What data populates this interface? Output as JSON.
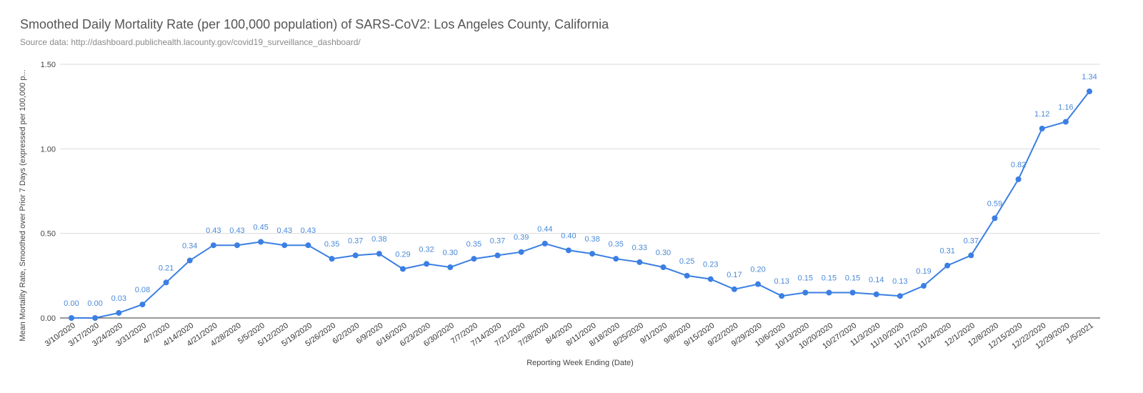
{
  "chart_data": {
    "type": "line",
    "title": "Smoothed Daily Mortality Rate (per 100,000 population) of SARS-CoV2: Los Angeles County, California",
    "subtitle": "Source data:  http://dashboard.publichealth.lacounty.gov/covid19_surveillance_dashboard/",
    "xlabel": "Reporting Week Ending (Date)",
    "ylabel": "Mean Mortality Rate, Smoothed over Prior 7 Days (expressed per 100,000 p...",
    "ylim": [
      0,
      1.5
    ],
    "yticks": [
      0,
      0.5,
      1.0,
      1.5
    ],
    "ytick_labels": [
      "0.00",
      "0.50",
      "1.00",
      "1.50"
    ],
    "grid": true,
    "series_color": "#3b7fe3",
    "categories": [
      "3/10/2020",
      "3/17/2020",
      "3/24/2020",
      "3/31/2020",
      "4/7/2020",
      "4/14/2020",
      "4/21/2020",
      "4/28/2020",
      "5/5/2020",
      "5/12/2020",
      "5/19/2020",
      "5/26/2020",
      "6/2/2020",
      "6/9/2020",
      "6/16/2020",
      "6/23/2020",
      "6/30/2020",
      "7/7/2020",
      "7/14/2020",
      "7/21/2020",
      "7/28/2020",
      "8/4/2020",
      "8/11/2020",
      "8/18/2020",
      "8/25/2020",
      "9/1/2020",
      "9/8/2020",
      "9/15/2020",
      "9/22/2020",
      "9/29/2020",
      "10/6/2020",
      "10/13/2020",
      "10/20/2020",
      "10/27/2020",
      "11/3/2020",
      "11/10/2020",
      "11/17/2020",
      "11/24/2020",
      "12/1/2020",
      "12/8/2020",
      "12/15/2020",
      "12/22/2020",
      "12/29/2020",
      "1/5/2021"
    ],
    "values": [
      0.0,
      0.0,
      0.03,
      0.08,
      0.21,
      0.34,
      0.43,
      0.43,
      0.45,
      0.43,
      0.43,
      0.35,
      0.37,
      0.38,
      0.29,
      0.32,
      0.3,
      0.35,
      0.37,
      0.39,
      0.44,
      0.4,
      0.38,
      0.35,
      0.33,
      0.3,
      0.25,
      0.23,
      0.17,
      0.2,
      0.13,
      0.15,
      0.15,
      0.15,
      0.14,
      0.13,
      0.19,
      0.31,
      0.37,
      0.59,
      0.82,
      1.12,
      1.16,
      1.34
    ],
    "labels": [
      "0.00",
      "0.00",
      "0.03",
      "0.08",
      "0.21",
      "0.34",
      "0.43",
      "0.43",
      "0.45",
      "0.43",
      "0.43",
      "0.35",
      "0.37",
      "0.38",
      "0.29",
      "0.32",
      "0.30",
      "0.35",
      "0.37",
      "0.39",
      "0.44",
      "0.40",
      "0.38",
      "0.35",
      "0.33",
      "0.30",
      "0.25",
      "0.23",
      "0.17",
      "0.20",
      "0.13",
      "0.15",
      "0.15",
      "0.15",
      "0.14",
      "0.13",
      "0.19",
      "0.31",
      "0.37",
      "0.59",
      "0.82",
      "1.12",
      "1.16",
      "1.34"
    ]
  }
}
